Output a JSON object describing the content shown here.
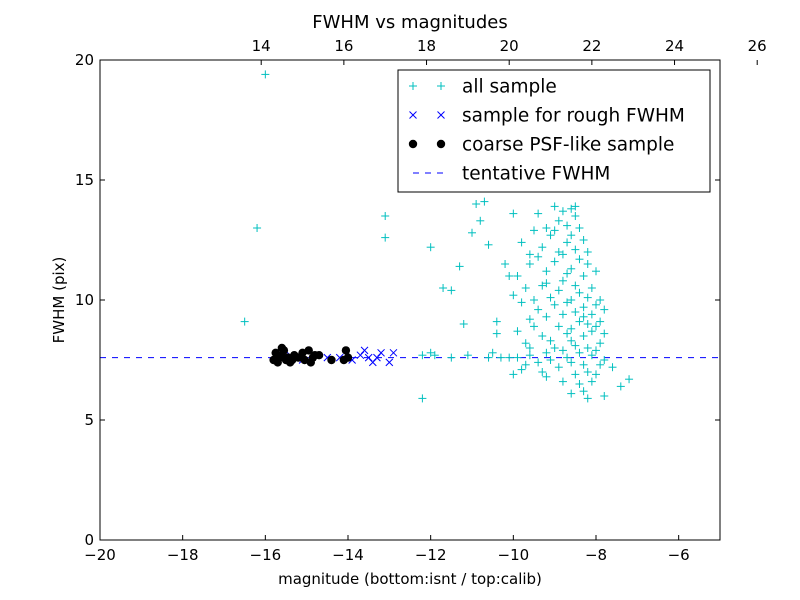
{
  "chart_data": {
    "type": "scatter",
    "title": "FWHM vs magnitudes",
    "xlabel": "magnitude (bottom:isnt / top:calib)",
    "ylabel": "FWHM (pix)",
    "xlim": [
      -20,
      -5
    ],
    "ylim": [
      0,
      20
    ],
    "x_ticks": [
      -20,
      -18,
      -16,
      -14,
      -12,
      -10,
      -8,
      -6
    ],
    "x_tick_labels": [
      "−20",
      "−18",
      "−16",
      "−14",
      "−12",
      "−10",
      "−8",
      "−6"
    ],
    "y_ticks": [
      0,
      5,
      10,
      15,
      20
    ],
    "y_tick_labels": [
      "0",
      "5",
      "10",
      "15",
      "20"
    ],
    "top_axis": {
      "offset": 30.1,
      "ticks": [
        14,
        16,
        18,
        20,
        22,
        24,
        26
      ],
      "tick_labels": [
        "14",
        "16",
        "18",
        "20",
        "22",
        "24",
        "26"
      ]
    },
    "grid": false,
    "legend_position": "top-right",
    "legend": [
      {
        "label": "all sample",
        "marker": "plus",
        "color": "#00bfbf"
      },
      {
        "label": "sample for rough FWHM",
        "marker": "x",
        "color": "#0000ff"
      },
      {
        "label": "coarse PSF-like sample",
        "marker": "dot",
        "color": "#000000"
      },
      {
        "label": "tentative FWHM",
        "marker": "dash",
        "color": "#0000ff"
      }
    ],
    "tentative_fwhm": 7.6,
    "series": [
      {
        "name": "all sample",
        "marker": "plus",
        "color": "#00bfbf",
        "points": [
          [
            -16.0,
            19.4
          ],
          [
            -16.2,
            13.0
          ],
          [
            -16.5,
            9.1
          ],
          [
            -13.1,
            13.5
          ],
          [
            -13.1,
            12.6
          ],
          [
            -12.2,
            5.9
          ],
          [
            -12.2,
            7.7
          ],
          [
            -12.0,
            7.8
          ],
          [
            -11.9,
            7.7
          ],
          [
            -12.0,
            12.2
          ],
          [
            -11.7,
            10.5
          ],
          [
            -11.5,
            10.4
          ],
          [
            -11.5,
            7.6
          ],
          [
            -11.3,
            11.4
          ],
          [
            -11.2,
            9.0
          ],
          [
            -11.1,
            7.7
          ],
          [
            -11.0,
            12.8
          ],
          [
            -10.9,
            14.0
          ],
          [
            -10.8,
            13.3
          ],
          [
            -10.7,
            14.1
          ],
          [
            -10.6,
            12.3
          ],
          [
            -10.6,
            7.6
          ],
          [
            -10.5,
            7.8
          ],
          [
            -10.4,
            9.1
          ],
          [
            -10.3,
            7.6
          ],
          [
            -10.2,
            11.5
          ],
          [
            -10.1,
            11.0
          ],
          [
            -10.1,
            7.6
          ],
          [
            -10.0,
            13.6
          ],
          [
            -10.0,
            10.2
          ],
          [
            -9.9,
            11.0
          ],
          [
            -9.9,
            8.7
          ],
          [
            -9.9,
            7.6
          ],
          [
            -9.8,
            12.4
          ],
          [
            -9.8,
            9.9
          ],
          [
            -9.8,
            7.1
          ],
          [
            -9.7,
            10.5
          ],
          [
            -9.7,
            8.2
          ],
          [
            -9.7,
            7.3
          ],
          [
            -9.6,
            11.5
          ],
          [
            -9.6,
            9.2
          ],
          [
            -9.6,
            7.7
          ],
          [
            -9.5,
            12.9
          ],
          [
            -9.5,
            10.0
          ],
          [
            -9.5,
            8.9
          ],
          [
            -9.4,
            13.6
          ],
          [
            -9.4,
            11.8
          ],
          [
            -9.4,
            9.6
          ],
          [
            -9.4,
            7.4
          ],
          [
            -9.3,
            12.2
          ],
          [
            -9.3,
            10.6
          ],
          [
            -9.3,
            8.5
          ],
          [
            -9.3,
            7.0
          ],
          [
            -9.2,
            13.0
          ],
          [
            -9.2,
            11.2
          ],
          [
            -9.2,
            9.3
          ],
          [
            -9.2,
            7.8
          ],
          [
            -9.1,
            12.7
          ],
          [
            -9.1,
            10.1
          ],
          [
            -9.1,
            8.3
          ],
          [
            -9.1,
            7.5
          ],
          [
            -9.0,
            13.9
          ],
          [
            -9.0,
            11.6
          ],
          [
            -9.0,
            9.8
          ],
          [
            -9.0,
            8.0
          ],
          [
            -8.9,
            13.3
          ],
          [
            -8.9,
            12.0
          ],
          [
            -8.9,
            10.4
          ],
          [
            -8.9,
            8.9
          ],
          [
            -8.9,
            7.2
          ],
          [
            -8.8,
            13.7
          ],
          [
            -8.8,
            11.9
          ],
          [
            -8.8,
            10.8
          ],
          [
            -8.8,
            9.4
          ],
          [
            -8.8,
            7.9
          ],
          [
            -8.7,
            13.1
          ],
          [
            -8.7,
            12.4
          ],
          [
            -8.7,
            11.1
          ],
          [
            -8.7,
            9.9
          ],
          [
            -8.7,
            8.6
          ],
          [
            -8.7,
            7.6
          ],
          [
            -8.6,
            13.8
          ],
          [
            -8.6,
            12.7
          ],
          [
            -8.6,
            11.3
          ],
          [
            -8.6,
            10.0
          ],
          [
            -8.6,
            8.8
          ],
          [
            -8.6,
            7.4
          ],
          [
            -8.5,
            13.5
          ],
          [
            -8.5,
            12.1
          ],
          [
            -8.5,
            10.6
          ],
          [
            -8.5,
            9.5
          ],
          [
            -8.5,
            8.1
          ],
          [
            -8.5,
            6.9
          ],
          [
            -8.4,
            13.0
          ],
          [
            -8.4,
            11.7
          ],
          [
            -8.4,
            10.3
          ],
          [
            -8.4,
            9.1
          ],
          [
            -8.4,
            7.8
          ],
          [
            -8.4,
            6.5
          ],
          [
            -8.3,
            12.5
          ],
          [
            -8.3,
            11.0
          ],
          [
            -8.3,
            9.7
          ],
          [
            -8.3,
            8.5
          ],
          [
            -8.3,
            7.3
          ],
          [
            -8.3,
            6.2
          ],
          [
            -8.2,
            11.5
          ],
          [
            -8.2,
            10.1
          ],
          [
            -8.2,
            9.0
          ],
          [
            -8.2,
            8.0
          ],
          [
            -8.2,
            7.0
          ],
          [
            -8.2,
            5.9
          ],
          [
            -8.1,
            10.5
          ],
          [
            -8.1,
            9.4
          ],
          [
            -8.1,
            8.7
          ],
          [
            -8.1,
            7.7
          ],
          [
            -8.1,
            6.6
          ],
          [
            -8.0,
            11.2
          ],
          [
            -8.0,
            9.8
          ],
          [
            -8.0,
            8.9
          ],
          [
            -8.0,
            7.9
          ],
          [
            -8.0,
            6.9
          ],
          [
            -7.9,
            10.0
          ],
          [
            -7.9,
            9.1
          ],
          [
            -7.9,
            8.2
          ],
          [
            -7.9,
            7.3
          ],
          [
            -7.8,
            9.6
          ],
          [
            -7.8,
            8.6
          ],
          [
            -7.8,
            7.5
          ],
          [
            -7.8,
            6.0
          ],
          [
            -7.6,
            7.2
          ],
          [
            -7.4,
            6.4
          ],
          [
            -7.2,
            6.7
          ],
          [
            -8.6,
            6.1
          ],
          [
            -9.2,
            6.8
          ],
          [
            -10.0,
            6.9
          ],
          [
            -9.6,
            11.9
          ],
          [
            -9.0,
            12.9
          ],
          [
            -8.5,
            13.9
          ],
          [
            -8.2,
            12.0
          ],
          [
            -8.8,
            6.6
          ],
          [
            -10.4,
            8.6
          ],
          [
            -9.6,
            8.0
          ],
          [
            -8.6,
            8.3
          ],
          [
            -8.3,
            9.3
          ],
          [
            -9.2,
            10.7
          ]
        ]
      },
      {
        "name": "sample for rough FWHM",
        "marker": "x",
        "color": "#0000ff",
        "points": [
          [
            -15.7,
            7.6
          ],
          [
            -15.4,
            7.7
          ],
          [
            -15.1,
            7.5
          ],
          [
            -14.8,
            7.7
          ],
          [
            -14.5,
            7.6
          ],
          [
            -14.2,
            7.6
          ],
          [
            -13.9,
            7.5
          ],
          [
            -13.7,
            7.7
          ],
          [
            -13.6,
            7.9
          ],
          [
            -13.5,
            7.6
          ],
          [
            -13.4,
            7.4
          ],
          [
            -13.3,
            7.6
          ],
          [
            -13.2,
            7.8
          ],
          [
            -13.0,
            7.4
          ],
          [
            -12.9,
            7.8
          ]
        ]
      },
      {
        "name": "coarse PSF-like sample",
        "marker": "dot",
        "color": "#000000",
        "points": [
          [
            -15.8,
            7.5
          ],
          [
            -15.75,
            7.8
          ],
          [
            -15.7,
            7.4
          ],
          [
            -15.65,
            7.6
          ],
          [
            -15.6,
            7.7
          ],
          [
            -15.55,
            7.9
          ],
          [
            -15.5,
            7.5
          ],
          [
            -15.45,
            7.6
          ],
          [
            -15.4,
            7.4
          ],
          [
            -15.3,
            7.7
          ],
          [
            -15.2,
            7.6
          ],
          [
            -15.1,
            7.8
          ],
          [
            -15.05,
            7.5
          ],
          [
            -14.95,
            7.9
          ],
          [
            -14.9,
            7.4
          ],
          [
            -14.85,
            7.6
          ],
          [
            -14.8,
            7.7
          ],
          [
            -14.7,
            7.7
          ],
          [
            -14.4,
            7.5
          ],
          [
            -14.1,
            7.5
          ],
          [
            -14.05,
            7.9
          ],
          [
            -14.0,
            7.6
          ],
          [
            -15.6,
            8.0
          ],
          [
            -15.35,
            7.5
          ]
        ]
      }
    ]
  }
}
